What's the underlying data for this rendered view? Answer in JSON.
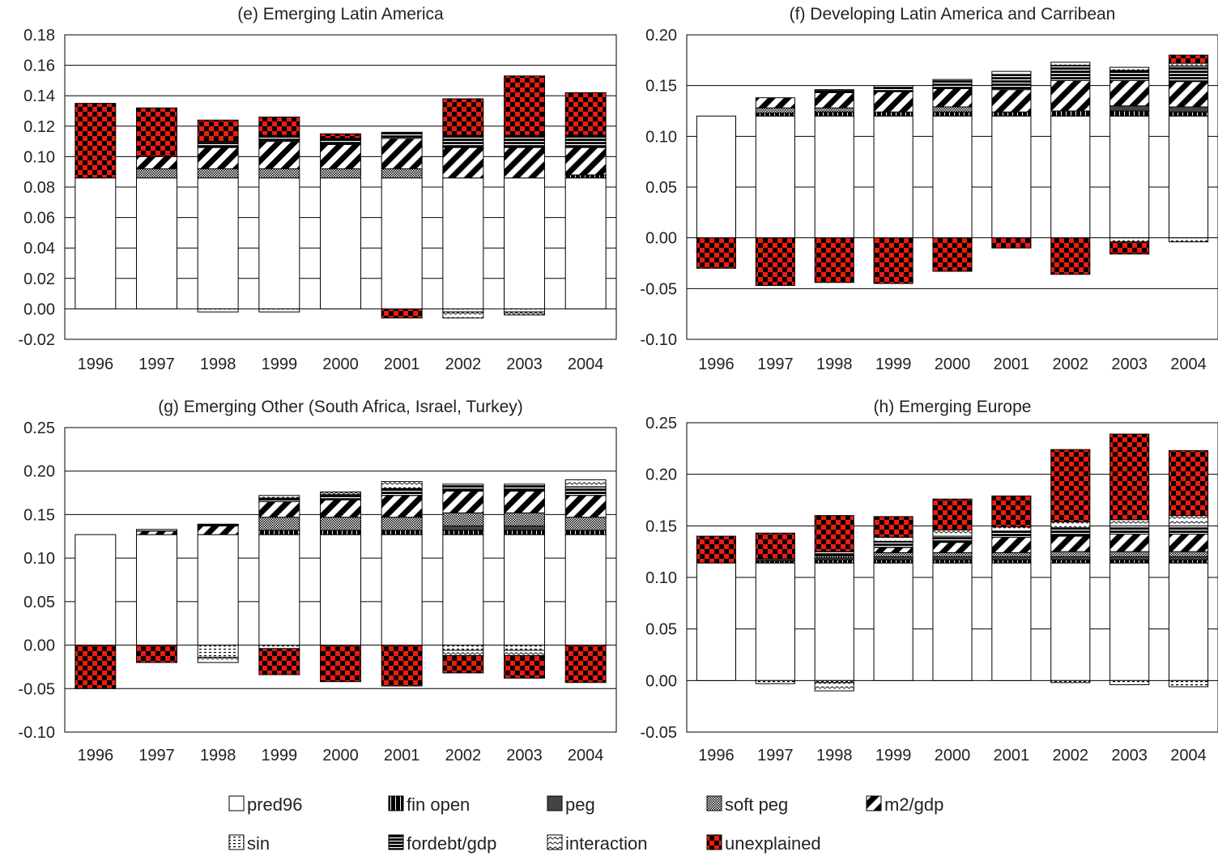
{
  "chart_data": [
    {
      "id": "e",
      "type": "bar",
      "stacked": true,
      "title": "(e) Emerging Latin America",
      "categories": [
        "1996",
        "1997",
        "1998",
        "1999",
        "2000",
        "2001",
        "2002",
        "2003",
        "2004"
      ],
      "ylim": [
        -0.02,
        0.18
      ],
      "yticks": [
        -0.02,
        0.0,
        0.02,
        0.04,
        0.06,
        0.08,
        0.1,
        0.12,
        0.14,
        0.16,
        0.18
      ],
      "ytick_labels": [
        "-0.02",
        "0.00",
        "0.02",
        "0.04",
        "0.06",
        "0.08",
        "0.10",
        "0.12",
        "0.14",
        "0.16",
        "0.18"
      ],
      "grid": "horizontal",
      "series": [
        {
          "key": "pred96",
          "values": [
            0.086,
            0.086,
            0.086,
            0.086,
            0.086,
            0.086,
            0.086,
            0.086,
            0.086
          ]
        },
        {
          "key": "fin_open",
          "values": [
            0,
            0,
            0,
            0,
            0,
            0,
            0,
            0,
            0.002
          ]
        },
        {
          "key": "peg",
          "values": [
            0,
            0,
            0,
            0,
            0,
            0,
            0,
            0,
            0
          ]
        },
        {
          "key": "soft_peg",
          "values": [
            0,
            0.006,
            0.006,
            0.006,
            0.006,
            0.006,
            0,
            0,
            0
          ]
        },
        {
          "key": "m2gdp",
          "values": [
            0,
            0.008,
            0.014,
            0.018,
            0.016,
            0.02,
            0.02,
            0.02,
            0.018
          ]
        },
        {
          "key": "sin",
          "values": [
            0,
            0,
            -0.002,
            -0.002,
            0,
            0,
            -0.002,
            -0.002,
            0
          ]
        },
        {
          "key": "fordebt",
          "values": [
            0,
            0,
            0.004,
            0.004,
            0.004,
            0.004,
            0.008,
            0.008,
            0.008
          ]
        },
        {
          "key": "interaction",
          "values": [
            0,
            0,
            0,
            0,
            0,
            0,
            -0.004,
            -0.002,
            0
          ]
        },
        {
          "key": "unexplained",
          "values": [
            0.049,
            0.032,
            0.014,
            0.012,
            0.003,
            -0.006,
            0.024,
            0.039,
            0.028
          ]
        }
      ]
    },
    {
      "id": "f",
      "type": "bar",
      "stacked": true,
      "title": "(f) Developing Latin America and Carribean",
      "categories": [
        "1996",
        "1997",
        "1998",
        "1999",
        "2000",
        "2001",
        "2002",
        "2003",
        "2004"
      ],
      "ylim": [
        -0.1,
        0.2
      ],
      "yticks": [
        -0.1,
        -0.05,
        0.0,
        0.05,
        0.1,
        0.15,
        0.2
      ],
      "ytick_labels": [
        "-0.10",
        "-0.05",
        "0.00",
        "0.05",
        "0.10",
        "0.15",
        "0.20"
      ],
      "grid": "horizontal",
      "series": [
        {
          "key": "pred96",
          "values": [
            0.12,
            0.12,
            0.12,
            0.12,
            0.12,
            0.12,
            0.12,
            0.12,
            0.12
          ]
        },
        {
          "key": "fin_open",
          "values": [
            0,
            0.003,
            0.004,
            0.004,
            0.004,
            0.004,
            0.005,
            0.005,
            0.004
          ]
        },
        {
          "key": "peg",
          "values": [
            0,
            0,
            0,
            0,
            0,
            0,
            0,
            0.005,
            0.005
          ]
        },
        {
          "key": "soft_peg",
          "values": [
            0,
            0.005,
            0.004,
            0,
            0.005,
            0,
            0,
            0,
            0
          ]
        },
        {
          "key": "m2gdp",
          "values": [
            0,
            0.01,
            0.015,
            0.02,
            0.018,
            0.022,
            0.03,
            0.025,
            0.025
          ]
        },
        {
          "key": "sin",
          "values": [
            0,
            0,
            0,
            0,
            0,
            0,
            0,
            -0.004,
            -0.004
          ]
        },
        {
          "key": "fordebt",
          "values": [
            0,
            0,
            0.003,
            0.006,
            0.009,
            0.015,
            0.015,
            0.01,
            0.015
          ]
        },
        {
          "key": "interaction",
          "values": [
            0,
            0,
            0,
            0,
            0,
            0.003,
            0.003,
            0.003,
            0.003
          ]
        },
        {
          "key": "unexplained",
          "values": [
            -0.03,
            -0.047,
            -0.044,
            -0.045,
            -0.033,
            -0.01,
            -0.036,
            -0.012,
            0.008
          ]
        }
      ]
    },
    {
      "id": "g",
      "type": "bar",
      "stacked": true,
      "title": "(g) Emerging Other (South Africa, Israel, Turkey)",
      "categories": [
        "1996",
        "1997",
        "1998",
        "1999",
        "2000",
        "2001",
        "2002",
        "2003",
        "2004"
      ],
      "ylim": [
        -0.1,
        0.25
      ],
      "yticks": [
        -0.1,
        -0.05,
        0.0,
        0.05,
        0.1,
        0.15,
        0.2,
        0.25
      ],
      "ytick_labels": [
        "-0.10",
        "-0.05",
        "0.00",
        "0.05",
        "0.10",
        "0.15",
        "0.20",
        "0.25"
      ],
      "grid": "horizontal",
      "series": [
        {
          "key": "pred96",
          "values": [
            0.127,
            0.127,
            0.127,
            0.127,
            0.127,
            0.127,
            0.127,
            0.127,
            0.127
          ]
        },
        {
          "key": "fin_open",
          "values": [
            0,
            0,
            0,
            0.005,
            0.005,
            0.005,
            0.005,
            0.005,
            0.005
          ]
        },
        {
          "key": "peg",
          "values": [
            0,
            0,
            0,
            0,
            0,
            0,
            0.005,
            0.005,
            0
          ]
        },
        {
          "key": "soft_peg",
          "values": [
            0,
            0,
            0,
            0.015,
            0.015,
            0.015,
            0.015,
            0.015,
            0.015
          ]
        },
        {
          "key": "m2gdp",
          "values": [
            0,
            0.004,
            0.01,
            0.018,
            0.02,
            0.025,
            0.025,
            0.025,
            0.025
          ]
        },
        {
          "key": "sin",
          "values": [
            0,
            0,
            -0.014,
            -0.004,
            0,
            0,
            -0.006,
            -0.006,
            0
          ]
        },
        {
          "key": "fordebt",
          "values": [
            0,
            0.002,
            0.002,
            0.004,
            0.006,
            0.008,
            0.008,
            0.008,
            0.01
          ]
        },
        {
          "key": "interaction",
          "values": [
            0,
            0,
            -0.006,
            0.003,
            0.003,
            0.008,
            -0.006,
            -0.006,
            0.008
          ]
        },
        {
          "key": "unexplained",
          "values": [
            -0.05,
            -0.02,
            0,
            -0.03,
            -0.042,
            -0.047,
            -0.02,
            -0.026,
            -0.043
          ]
        }
      ]
    },
    {
      "id": "h",
      "type": "bar",
      "stacked": true,
      "title": "(h) Emerging Europe",
      "categories": [
        "1996",
        "1997",
        "1998",
        "1999",
        "2000",
        "2001",
        "2002",
        "2003",
        "2004"
      ],
      "ylim": [
        -0.05,
        0.25
      ],
      "yticks": [
        -0.05,
        0.0,
        0.05,
        0.1,
        0.15,
        0.2,
        0.25
      ],
      "ytick_labels": [
        "-0.05",
        "0.00",
        "0.05",
        "0.10",
        "0.15",
        "0.20",
        "0.25"
      ],
      "grid": "horizontal",
      "series": [
        {
          "key": "pred96",
          "values": [
            0.114,
            0.114,
            0.114,
            0.114,
            0.114,
            0.114,
            0.114,
            0.114,
            0.114
          ]
        },
        {
          "key": "fin_open",
          "values": [
            0,
            0.002,
            0.003,
            0.003,
            0.003,
            0.003,
            0.003,
            0.003,
            0.003
          ]
        },
        {
          "key": "peg",
          "values": [
            0,
            0.002,
            0.002,
            0.003,
            0.003,
            0.003,
            0.003,
            0.003,
            0.003
          ]
        },
        {
          "key": "soft_peg",
          "values": [
            0,
            0,
            0.002,
            0.004,
            0.004,
            0.004,
            0.005,
            0.005,
            0.005
          ]
        },
        {
          "key": "m2gdp",
          "values": [
            0,
            0,
            0,
            0.005,
            0.01,
            0.015,
            0.015,
            0.017,
            0.017
          ]
        },
        {
          "key": "sin",
          "values": [
            0,
            -0.003,
            -0.002,
            0,
            0,
            0,
            -0.002,
            -0.004,
            -0.006
          ]
        },
        {
          "key": "fordebt",
          "values": [
            0,
            0,
            0.004,
            0.006,
            0.006,
            0.006,
            0.008,
            0.008,
            0.008
          ]
        },
        {
          "key": "interaction",
          "values": [
            0,
            0,
            -0.008,
            0.004,
            0.006,
            0.004,
            0.006,
            0.006,
            0.01
          ]
        },
        {
          "key": "unexplained",
          "values": [
            0.026,
            0.025,
            0.035,
            0.02,
            0.03,
            0.03,
            0.07,
            0.083,
            0.063
          ]
        }
      ]
    }
  ],
  "legend": [
    {
      "key": "pred96",
      "label": "pred96"
    },
    {
      "key": "fin_open",
      "label": "fin open"
    },
    {
      "key": "peg",
      "label": "peg"
    },
    {
      "key": "soft_peg",
      "label": "soft peg"
    },
    {
      "key": "m2gdp",
      "label": "m2/gdp"
    },
    {
      "key": "sin",
      "label": "sin"
    },
    {
      "key": "fordebt",
      "label": "fordebt/gdp"
    },
    {
      "key": "interaction",
      "label": "interaction"
    },
    {
      "key": "unexplained",
      "label": "unexplained"
    }
  ],
  "colors": {
    "unexplained": "#ee1c0e",
    "pred96": "#ffffff",
    "peg": "#444444",
    "ink": "#000000"
  }
}
